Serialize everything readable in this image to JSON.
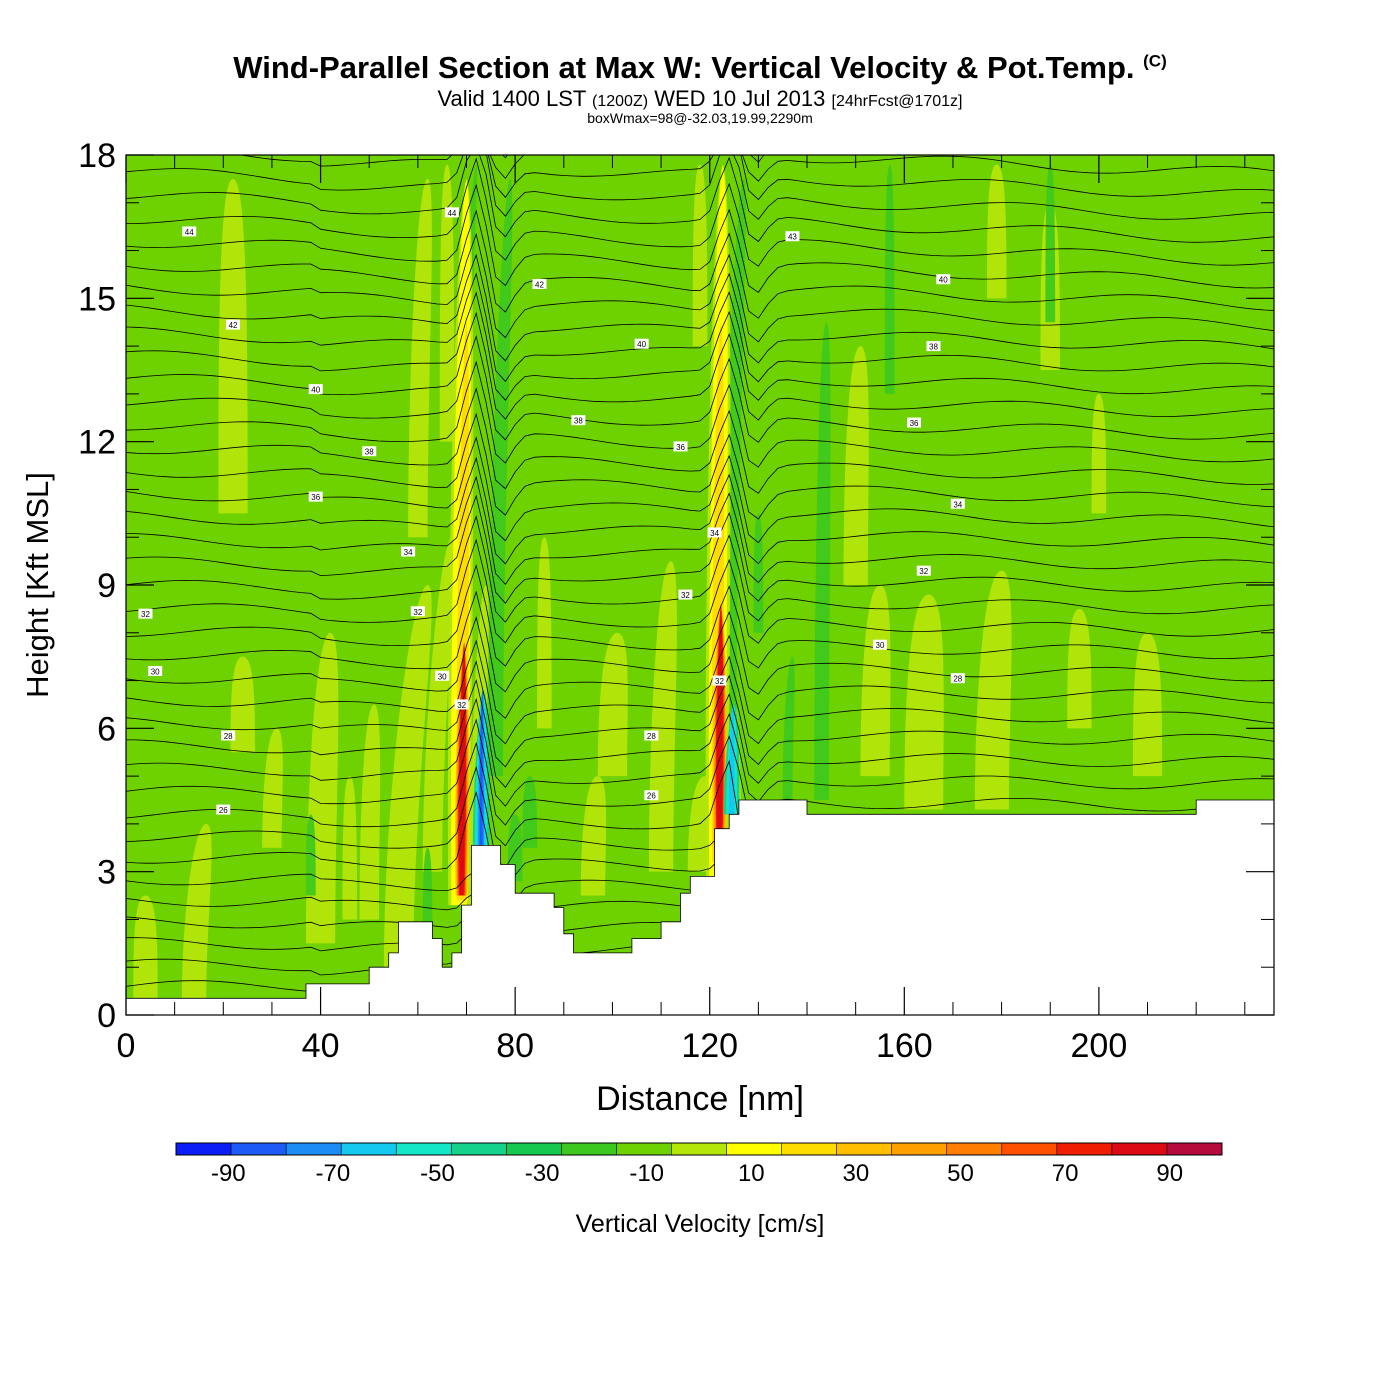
{
  "title": {
    "main": "Wind-Parallel Section at Max W: Vertical Velocity & Pot.Temp.",
    "copyright": "(C)",
    "valid_a": "Valid 1400 LST",
    "valid_utc": "(1200Z)",
    "valid_b": "WED 10 Jul 2013",
    "forecast": "[24hrFcst@1701z]",
    "box": "boxWmax=98@-32.03,19.99,2290m"
  },
  "chart_data": {
    "type": "heatmap",
    "xlabel": "Distance [nm]",
    "ylabel": "Height [Kft MSL]",
    "xlim": [
      0,
      236
    ],
    "ylim": [
      0,
      18
    ],
    "x_ticks": [
      0,
      40,
      80,
      120,
      160,
      200
    ],
    "y_ticks": [
      0,
      3,
      6,
      9,
      12,
      15,
      18
    ],
    "colorbar": {
      "label": "Vertical Velocity [cm/s]",
      "tick_labels": [
        -90,
        -70,
        -50,
        -30,
        -10,
        10,
        30,
        50,
        70,
        90
      ],
      "range": [
        -100,
        100
      ],
      "colors": [
        "#0a1ef5",
        "#1e5af5",
        "#1e8cf5",
        "#14c8f0",
        "#14e6c8",
        "#14d28c",
        "#14c850",
        "#3cc81e",
        "#6ed200",
        "#b4e60a",
        "#ffff00",
        "#ffdc00",
        "#ffbe00",
        "#ffa000",
        "#ff7d00",
        "#ff5000",
        "#f01e00",
        "#dc0a14",
        "#b40a3c"
      ]
    },
    "terrain_top_kft": [
      [
        0,
        0.35
      ],
      [
        37,
        0.35
      ],
      [
        37,
        0.65
      ],
      [
        50,
        0.65
      ],
      [
        50,
        1.0
      ],
      [
        54,
        1.0
      ],
      [
        54,
        1.3
      ],
      [
        56,
        1.3
      ],
      [
        56,
        1.95
      ],
      [
        63,
        1.95
      ],
      [
        63,
        1.6
      ],
      [
        65,
        1.6
      ],
      [
        65,
        1.0
      ],
      [
        67,
        1.0
      ],
      [
        67,
        1.3
      ],
      [
        69,
        1.3
      ],
      [
        69,
        2.3
      ],
      [
        71,
        2.3
      ],
      [
        71,
        3.55
      ],
      [
        77,
        3.55
      ],
      [
        77,
        3.15
      ],
      [
        80,
        3.15
      ],
      [
        80,
        2.55
      ],
      [
        88,
        2.55
      ],
      [
        88,
        2.25
      ],
      [
        90,
        2.25
      ],
      [
        90,
        1.7
      ],
      [
        92,
        1.7
      ],
      [
        92,
        1.3
      ],
      [
        104,
        1.3
      ],
      [
        104,
        1.6
      ],
      [
        110,
        1.6
      ],
      [
        110,
        1.95
      ],
      [
        114,
        1.95
      ],
      [
        114,
        2.55
      ],
      [
        116,
        2.55
      ],
      [
        116,
        2.9
      ],
      [
        121,
        2.9
      ],
      [
        121,
        3.9
      ],
      [
        124,
        3.9
      ],
      [
        124,
        4.2
      ],
      [
        126,
        4.2
      ],
      [
        126,
        4.5
      ],
      [
        140,
        4.5
      ],
      [
        140,
        4.2
      ],
      [
        220,
        4.2
      ],
      [
        220,
        4.5
      ],
      [
        236,
        4.5
      ]
    ],
    "theta_label_values": [
      26,
      28,
      30,
      32,
      34,
      36,
      38,
      40,
      42,
      43,
      44
    ],
    "theta_labels": [
      {
        "text": "44",
        "x": 13,
        "y": 16.4
      },
      {
        "text": "42",
        "x": 22,
        "y": 14.45
      },
      {
        "text": "40",
        "x": 39,
        "y": 13.1
      },
      {
        "text": "38",
        "x": 50,
        "y": 11.8
      },
      {
        "text": "36",
        "x": 39,
        "y": 10.85
      },
      {
        "text": "34",
        "x": 58,
        "y": 9.7
      },
      {
        "text": "32",
        "x": 60,
        "y": 8.45
      },
      {
        "text": "30",
        "x": 65,
        "y": 7.1
      },
      {
        "text": "28",
        "x": 21,
        "y": 5.85
      },
      {
        "text": "26",
        "x": 20,
        "y": 4.3
      },
      {
        "text": "32",
        "x": 4,
        "y": 8.4
      },
      {
        "text": "30",
        "x": 6,
        "y": 7.2
      },
      {
        "text": "44",
        "x": 67,
        "y": 16.8
      },
      {
        "text": "42",
        "x": 85,
        "y": 15.3
      },
      {
        "text": "40",
        "x": 106,
        "y": 14.05
      },
      {
        "text": "38",
        "x": 93,
        "y": 12.45
      },
      {
        "text": "36",
        "x": 114,
        "y": 11.9
      },
      {
        "text": "34",
        "x": 121,
        "y": 10.1
      },
      {
        "text": "32",
        "x": 115,
        "y": 8.8
      },
      {
        "text": "32",
        "x": 122,
        "y": 7.0
      },
      {
        "text": "32",
        "x": 69,
        "y": 6.5
      },
      {
        "text": "28",
        "x": 108,
        "y": 5.85
      },
      {
        "text": "26",
        "x": 108,
        "y": 4.6
      },
      {
        "text": "43",
        "x": 137,
        "y": 16.3
      },
      {
        "text": "40",
        "x": 168,
        "y": 15.4
      },
      {
        "text": "38",
        "x": 166,
        "y": 14.0
      },
      {
        "text": "36",
        "x": 162,
        "y": 12.4
      },
      {
        "text": "34",
        "x": 171,
        "y": 10.7
      },
      {
        "text": "32",
        "x": 164,
        "y": 9.3
      },
      {
        "text": "30",
        "x": 155,
        "y": 7.75
      },
      {
        "text": "28",
        "x": 171,
        "y": 7.05
      }
    ]
  }
}
